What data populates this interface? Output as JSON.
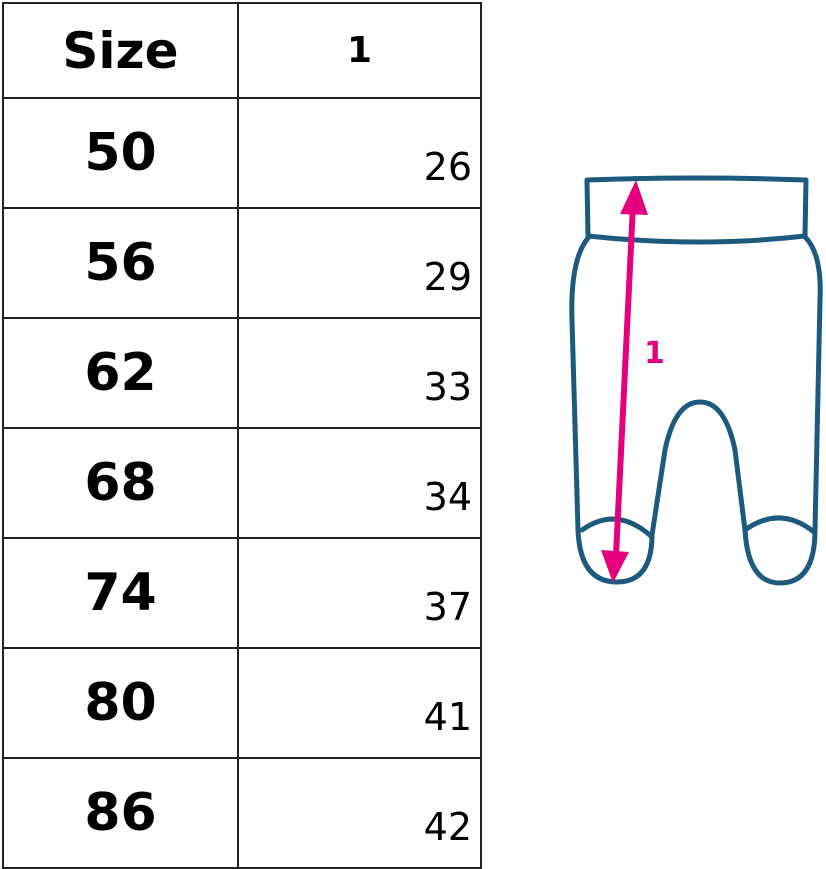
{
  "table": {
    "headers": [
      "Size",
      "1"
    ],
    "rows": [
      {
        "size": "50",
        "value": "26"
      },
      {
        "size": "56",
        "value": "29"
      },
      {
        "size": "62",
        "value": "33"
      },
      {
        "size": "68",
        "value": "34"
      },
      {
        "size": "74",
        "value": "37"
      },
      {
        "size": "80",
        "value": "41"
      },
      {
        "size": "86",
        "value": "42"
      }
    ]
  },
  "diagram": {
    "measure_label": "1",
    "outline_color": "#1d5a7e",
    "arrow_color": "#e5007d"
  }
}
